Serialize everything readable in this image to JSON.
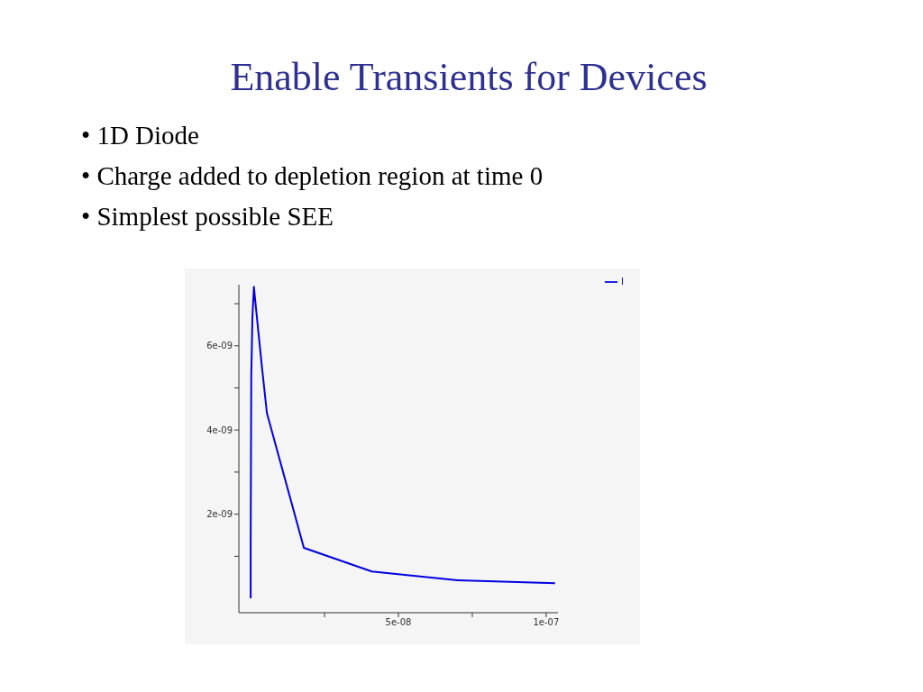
{
  "chart_data": {
    "type": "line",
    "title": "Enable Transients for Devices",
    "annotations": [
      "• 1D Diode",
      "• Charge added to depletion region at time 0",
      "• Simplest possible SEE"
    ],
    "x": [
      0,
      0,
      2e-10,
      6e-10,
      1.1e-09,
      1.5e-09,
      3.8e-09,
      5.5e-09,
      1.8e-08,
      4.1e-08,
      7e-08,
      1.03e-07
    ],
    "series": [
      {
        "name": "I",
        "color": "#0000e0",
        "values": [
          0,
          1.4e-09,
          5.3e-09,
          6.7e-09,
          7.4e-09,
          7.1e-09,
          5.5e-09,
          4.4e-09,
          1.2e-09,
          6.4e-10,
          4.3e-10,
          3.6e-10
        ]
      }
    ],
    "xlim": [
      -4e-09,
      1.04e-07
    ],
    "xticks": [
      {
        "value": 2.5e-08,
        "label": null
      },
      {
        "value": 5e-08,
        "label": "5e-08"
      },
      {
        "value": 7.5e-08,
        "label": null
      },
      {
        "value": 1e-07,
        "label": "1e-07"
      }
    ],
    "ylim": [
      -3.4e-10,
      7.45e-09
    ],
    "yticks": [
      {
        "value": 1e-09,
        "label": null
      },
      {
        "value": 2e-09,
        "label": "2e-09"
      },
      {
        "value": 3e-09,
        "label": null
      },
      {
        "value": 4e-09,
        "label": "4e-09"
      },
      {
        "value": 5e-09,
        "label": null
      },
      {
        "value": 6e-09,
        "label": "6e-09"
      },
      {
        "value": 7e-09,
        "label": null
      }
    ],
    "grid": false,
    "legend": "top right",
    "marker": "none",
    "line_style": "solid"
  }
}
